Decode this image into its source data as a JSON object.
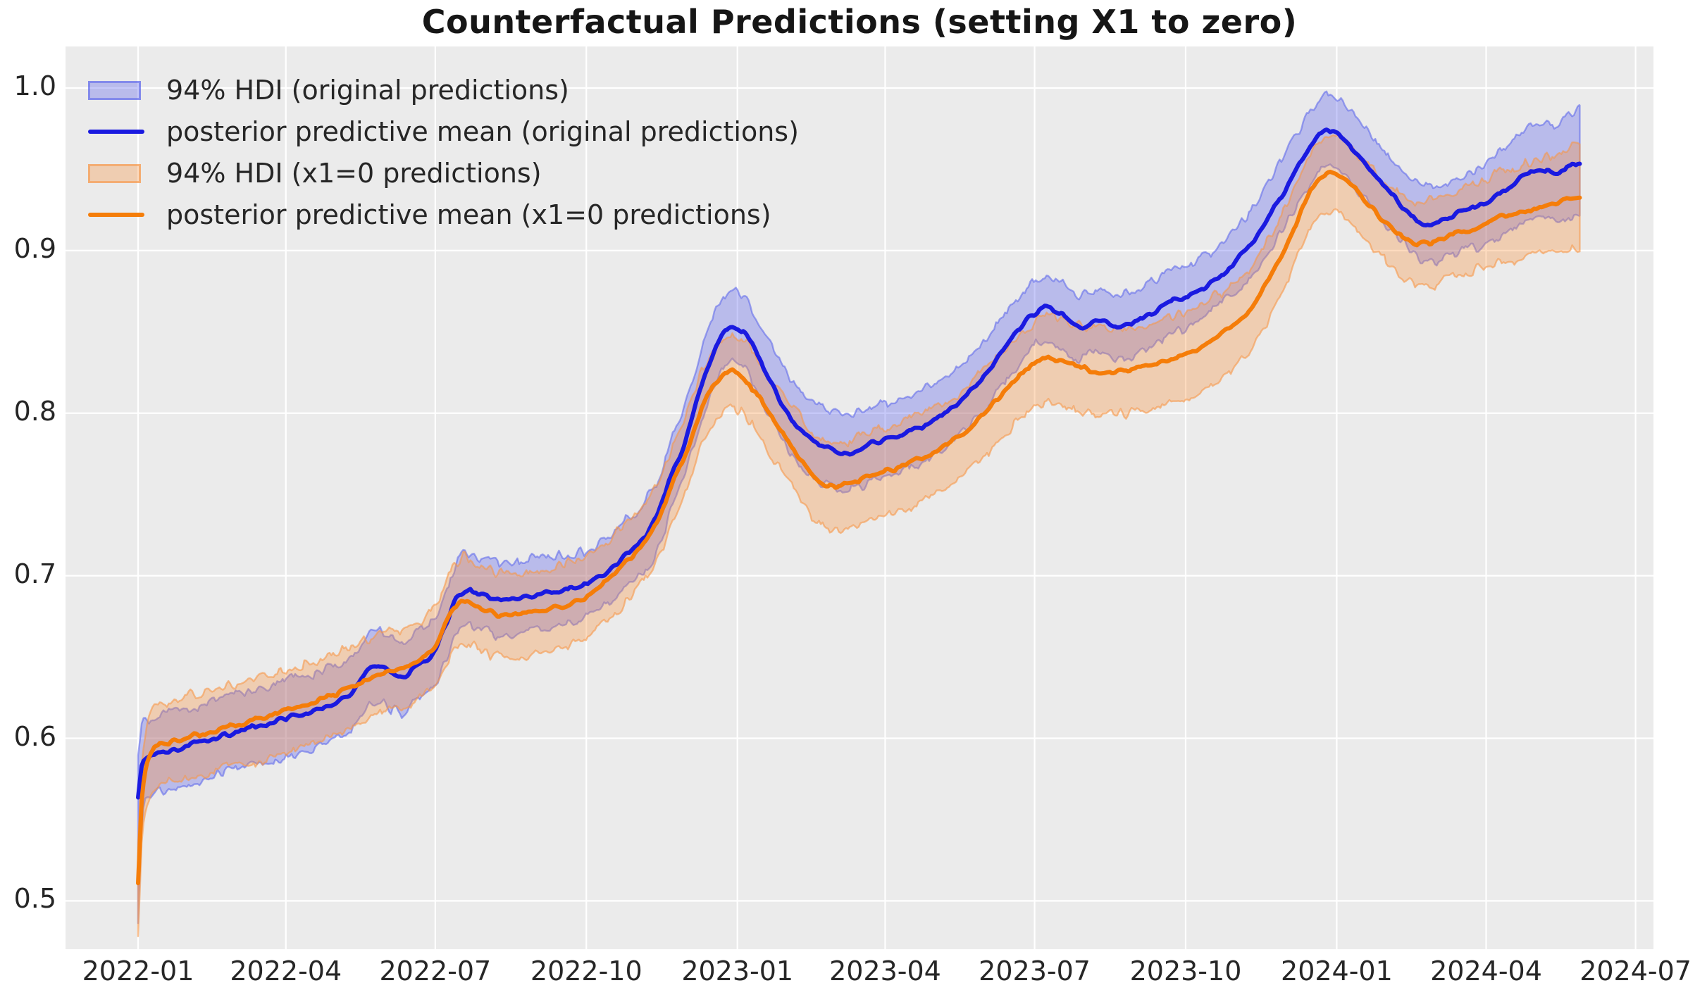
{
  "title": "Counterfactual Predictions (setting X1 to zero)",
  "legend": {
    "position": "upper left",
    "items": [
      {
        "label": "94% HDI (original predictions)",
        "swatch": "patch",
        "series": "original"
      },
      {
        "label": "posterior predictive mean (original predictions)",
        "swatch": "line",
        "series": "original"
      },
      {
        "label": "94% HDI (x1=0 predictions)",
        "swatch": "patch",
        "series": "x1_zero"
      },
      {
        "label": "posterior predictive mean (x1=0 predictions)",
        "swatch": "line",
        "series": "x1_zero"
      }
    ]
  },
  "colors": {
    "background": "#ffffff",
    "plot_background": "#ebebeb",
    "grid": "#ffffff",
    "blue_line": "#1a1ae0",
    "blue_band_fill": "rgba(68,76,235,0.30)",
    "blue_band_edge": "rgba(88,98,235,0.55)",
    "orange_line": "#f57d09",
    "orange_band_fill": "rgba(250,146,61,0.33)",
    "orange_band_edge": "rgba(246,152,74,0.60)",
    "text": "#262626",
    "title_text": "#161616"
  },
  "chart_data": {
    "type": "line",
    "title": "Counterfactual Predictions (setting X1 to zero)",
    "grid": true,
    "legend_position": "upper left",
    "x_axis": {
      "unit": "days since 2022-01-01",
      "tick_days": [
        0,
        90,
        181,
        273,
        365,
        455,
        546,
        638,
        730,
        821,
        912
      ],
      "tick_labels": [
        "2022-01",
        "2022-04",
        "2022-07",
        "2022-10",
        "2023-01",
        "2023-04",
        "2023-07",
        "2023-10",
        "2024-01",
        "2024-04",
        "2024-07"
      ],
      "xlim_days": [
        -44,
        923
      ],
      "data_end_day": 878
    },
    "y_axis": {
      "ticks": [
        0.5,
        0.6,
        0.7,
        0.8,
        0.9,
        1.0
      ],
      "tick_labels": [
        "0.5",
        "0.6",
        "0.7",
        "0.8",
        "0.9",
        "1.0"
      ],
      "ylim": [
        0.47,
        1.026
      ]
    },
    "series": [
      {
        "name": "posterior predictive mean (original predictions)",
        "type": "line",
        "color_key": "blue_line",
        "days": [
          0,
          2,
          5,
          10,
          20,
          30,
          45,
          59,
          75,
          90,
          105,
          120,
          130,
          140,
          146,
          152,
          160,
          168,
          175,
          181,
          187,
          193,
          200,
          208,
          215,
          222,
          230,
          240,
          252,
          262,
          272,
          280,
          288,
          295,
          302,
          310,
          318,
          325,
          332,
          338,
          344,
          350,
          356,
          361,
          366,
          372,
          378,
          385,
          392,
          400,
          408,
          416,
          424,
          430,
          436,
          444,
          452,
          460,
          468,
          476,
          484,
          492,
          500,
          508,
          516,
          524,
          532,
          540,
          547,
          554,
          560,
          566,
          572,
          578,
          584,
          590,
          596,
          602,
          608,
          615,
          622,
          630,
          638,
          646,
          654,
          662,
          670,
          678,
          686,
          694,
          702,
          710,
          716,
          722,
          727,
          732,
          738,
          745,
          752,
          760,
          768,
          775,
          782,
          788,
          794,
          800,
          808,
          816,
          824,
          832,
          840,
          848,
          856,
          862,
          868,
          873,
          878
        ],
        "values": [
          0.565,
          0.583,
          0.588,
          0.59,
          0.5925,
          0.5955,
          0.6,
          0.6035,
          0.608,
          0.6125,
          0.6165,
          0.621,
          0.627,
          0.641,
          0.6445,
          0.641,
          0.6375,
          0.6425,
          0.6475,
          0.654,
          0.668,
          0.684,
          0.6915,
          0.689,
          0.6865,
          0.6845,
          0.6855,
          0.688,
          0.69,
          0.6915,
          0.694,
          0.699,
          0.7045,
          0.711,
          0.717,
          0.7265,
          0.741,
          0.762,
          0.779,
          0.8,
          0.82,
          0.8365,
          0.8475,
          0.8525,
          0.8515,
          0.845,
          0.8335,
          0.82,
          0.8065,
          0.794,
          0.7865,
          0.781,
          0.7775,
          0.7755,
          0.7765,
          0.7805,
          0.7825,
          0.7845,
          0.788,
          0.7915,
          0.795,
          0.8005,
          0.8075,
          0.8155,
          0.8235,
          0.8355,
          0.8455,
          0.8555,
          0.862,
          0.8655,
          0.862,
          0.8575,
          0.8525,
          0.8545,
          0.8575,
          0.8555,
          0.8525,
          0.8535,
          0.8565,
          0.8605,
          0.8645,
          0.869,
          0.871,
          0.8755,
          0.881,
          0.8875,
          0.8955,
          0.9045,
          0.9165,
          0.93,
          0.9435,
          0.9575,
          0.9665,
          0.9735,
          0.9745,
          0.971,
          0.9645,
          0.9565,
          0.9475,
          0.9385,
          0.9295,
          0.9225,
          0.9175,
          0.9165,
          0.9185,
          0.921,
          0.9245,
          0.9265,
          0.9305,
          0.9365,
          0.9435,
          0.9475,
          0.9495,
          0.9475,
          0.9495,
          0.9525,
          0.9545
        ]
      },
      {
        "name": "94% HDI (original predictions)",
        "type": "band",
        "center_series": 0,
        "fill_key": "blue_band_fill",
        "edge_key": "blue_band_edge",
        "hw_days": [
          0,
          10,
          60,
          120,
          180,
          200,
          240,
          300,
          340,
          361,
          400,
          428,
          470,
          520,
          554,
          600,
          640,
          680,
          722,
          760,
          782,
          810,
          840,
          860,
          878
        ],
        "hw_values": [
          0.024,
          0.0235,
          0.023,
          0.0225,
          0.021,
          0.0215,
          0.022,
          0.021,
          0.0215,
          0.022,
          0.023,
          0.0235,
          0.022,
          0.021,
          0.02,
          0.0195,
          0.019,
          0.02,
          0.022,
          0.0215,
          0.022,
          0.0235,
          0.027,
          0.0295,
          0.032
        ],
        "start_tail_low": 0.053
      },
      {
        "name": "posterior predictive mean (x1=0 predictions)",
        "type": "line",
        "color_key": "orange_line",
        "days": [
          0,
          2,
          5,
          10,
          20,
          30,
          45,
          59,
          75,
          90,
          105,
          120,
          130,
          140,
          148,
          156,
          164,
          172,
          181,
          188,
          194,
          199,
          206,
          214,
          222,
          232,
          242,
          252,
          262,
          272,
          280,
          288,
          295,
          302,
          310,
          318,
          325,
          332,
          338,
          344,
          350,
          356,
          361,
          366,
          372,
          378,
          385,
          392,
          400,
          408,
          414,
          419,
          424,
          430,
          436,
          444,
          452,
          460,
          468,
          476,
          484,
          492,
          500,
          508,
          516,
          524,
          532,
          540,
          547,
          554,
          560,
          566,
          572,
          578,
          584,
          590,
          596,
          602,
          608,
          615,
          622,
          630,
          638,
          646,
          654,
          662,
          670,
          678,
          686,
          694,
          702,
          710,
          716,
          722,
          727,
          732,
          738,
          745,
          752,
          760,
          768,
          774,
          780,
          786,
          792,
          800,
          808,
          816,
          824,
          832,
          840,
          848,
          856,
          864,
          871,
          878
        ],
        "values": [
          0.512,
          0.56,
          0.583,
          0.5935,
          0.5975,
          0.6005,
          0.6045,
          0.608,
          0.6125,
          0.617,
          0.6215,
          0.6265,
          0.631,
          0.6365,
          0.6395,
          0.6415,
          0.6445,
          0.6485,
          0.6565,
          0.672,
          0.6825,
          0.6855,
          0.6825,
          0.678,
          0.6755,
          0.6755,
          0.6775,
          0.6795,
          0.6825,
          0.687,
          0.6925,
          0.699,
          0.706,
          0.7135,
          0.7235,
          0.737,
          0.7555,
          0.7715,
          0.7885,
          0.8045,
          0.8155,
          0.8225,
          0.8255,
          0.8245,
          0.8185,
          0.8095,
          0.7985,
          0.7875,
          0.7765,
          0.7665,
          0.7595,
          0.7555,
          0.7545,
          0.7555,
          0.7575,
          0.7605,
          0.7625,
          0.7655,
          0.7685,
          0.772,
          0.776,
          0.7805,
          0.7855,
          0.7925,
          0.8,
          0.8095,
          0.818,
          0.8255,
          0.8305,
          0.8335,
          0.8335,
          0.831,
          0.8285,
          0.827,
          0.8255,
          0.8255,
          0.826,
          0.8265,
          0.8275,
          0.829,
          0.8305,
          0.8325,
          0.8355,
          0.8395,
          0.8445,
          0.85,
          0.857,
          0.8655,
          0.8775,
          0.8925,
          0.9095,
          0.9275,
          0.939,
          0.9455,
          0.9475,
          0.9455,
          0.941,
          0.9335,
          0.9255,
          0.9175,
          0.9105,
          0.9065,
          0.9045,
          0.9045,
          0.9065,
          0.9095,
          0.9125,
          0.9155,
          0.9185,
          0.921,
          0.9235,
          0.9255,
          0.9275,
          0.9295,
          0.9315,
          0.9335
        ]
      },
      {
        "name": "94% HDI (x1=0 predictions)",
        "type": "band",
        "center_series": 2,
        "fill_key": "orange_band_fill",
        "edge_key": "orange_band_edge",
        "hw_days": [
          0,
          10,
          60,
          120,
          180,
          200,
          240,
          300,
          340,
          361,
          400,
          428,
          470,
          520,
          554,
          600,
          640,
          680,
          722,
          760,
          782,
          810,
          840,
          860,
          878
        ],
        "hw_values": [
          0.024,
          0.025,
          0.0255,
          0.025,
          0.024,
          0.026,
          0.0255,
          0.024,
          0.0225,
          0.022,
          0.025,
          0.027,
          0.027,
          0.026,
          0.026,
          0.0265,
          0.027,
          0.025,
          0.023,
          0.024,
          0.026,
          0.026,
          0.0285,
          0.03,
          0.0325
        ],
        "start_tail_low": 0.012
      }
    ]
  }
}
